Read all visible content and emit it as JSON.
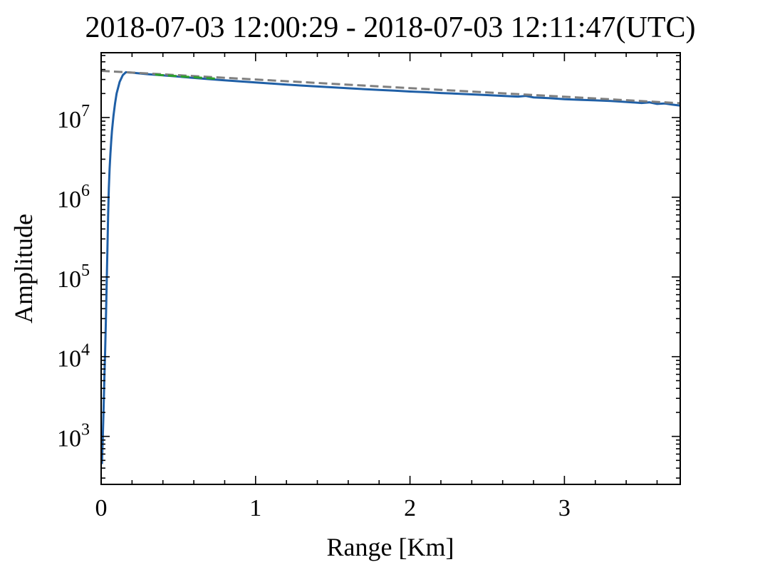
{
  "chart_data": {
    "type": "line",
    "title": "2018-07-03 12:00:29 - 2018-07-03 12:11:47(UTC)",
    "xlabel": "Range [Km]",
    "ylabel": "Amplitude",
    "xlim": [
      0,
      3.75
    ],
    "ylim": [
      250,
      65000000
    ],
    "yscale": "log",
    "grid": false,
    "x_ticks": [
      0,
      1,
      2,
      3
    ],
    "x_tick_labels": [
      "0",
      "1",
      "2",
      "3"
    ],
    "y_ticks": [
      1000,
      10000,
      100000,
      1000000,
      10000000
    ],
    "y_tick_labels": [
      {
        "base": "10",
        "exp": "3"
      },
      {
        "base": "10",
        "exp": "4"
      },
      {
        "base": "10",
        "exp": "5"
      },
      {
        "base": "10",
        "exp": "6"
      },
      {
        "base": "10",
        "exp": "7"
      }
    ],
    "series": [
      {
        "color": "#1f5fa6",
        "style": "solid",
        "x": [
          0.005,
          0.01,
          0.015,
          0.02,
          0.025,
          0.03,
          0.035,
          0.04,
          0.045,
          0.05,
          0.055,
          0.06,
          0.065,
          0.07,
          0.08,
          0.09,
          0.1,
          0.12,
          0.14,
          0.16,
          0.2,
          0.3,
          0.4,
          0.5,
          0.6,
          0.7,
          0.8,
          0.9,
          1.0,
          1.1,
          1.2,
          1.3,
          1.4,
          1.5,
          1.6,
          1.7,
          1.8,
          1.9,
          2.0,
          2.1,
          2.2,
          2.3,
          2.4,
          2.5,
          2.6,
          2.7,
          2.75,
          2.8,
          2.9,
          3.0,
          3.1,
          3.2,
          3.3,
          3.4,
          3.5,
          3.55,
          3.6,
          3.65,
          3.7,
          3.75
        ],
        "y": [
          450,
          900,
          2000,
          4500,
          10000,
          25000,
          70000,
          200000,
          600000,
          1300000,
          2300000,
          3500000,
          5000000,
          6800000,
          10500000,
          15000000,
          20000000,
          28000000,
          34000000,
          37000000,
          36500000,
          35000000,
          33800000,
          32600000,
          31400000,
          30300000,
          29300000,
          28400000,
          27500000,
          26700000,
          25900000,
          25200000,
          24500000,
          23900000,
          23300000,
          22700000,
          22200000,
          21700000,
          21200000,
          20800000,
          20300000,
          19900000,
          19500000,
          19100000,
          18700000,
          18300000,
          18700000,
          17900000,
          17500000,
          17000000,
          16700000,
          16400000,
          16100000,
          15700000,
          15200000,
          15500000,
          14800000,
          15000000,
          14500000,
          14100000
        ]
      },
      {
        "color": "#7f7f7f",
        "style": "dashed",
        "x": [
          0,
          3.75
        ],
        "y": [
          38500000,
          15100000
        ]
      },
      {
        "color": "#2ca02c",
        "style": "dashed",
        "x": [
          0.35,
          0.75
        ],
        "y": [
          34500000,
          30600000
        ]
      }
    ]
  }
}
